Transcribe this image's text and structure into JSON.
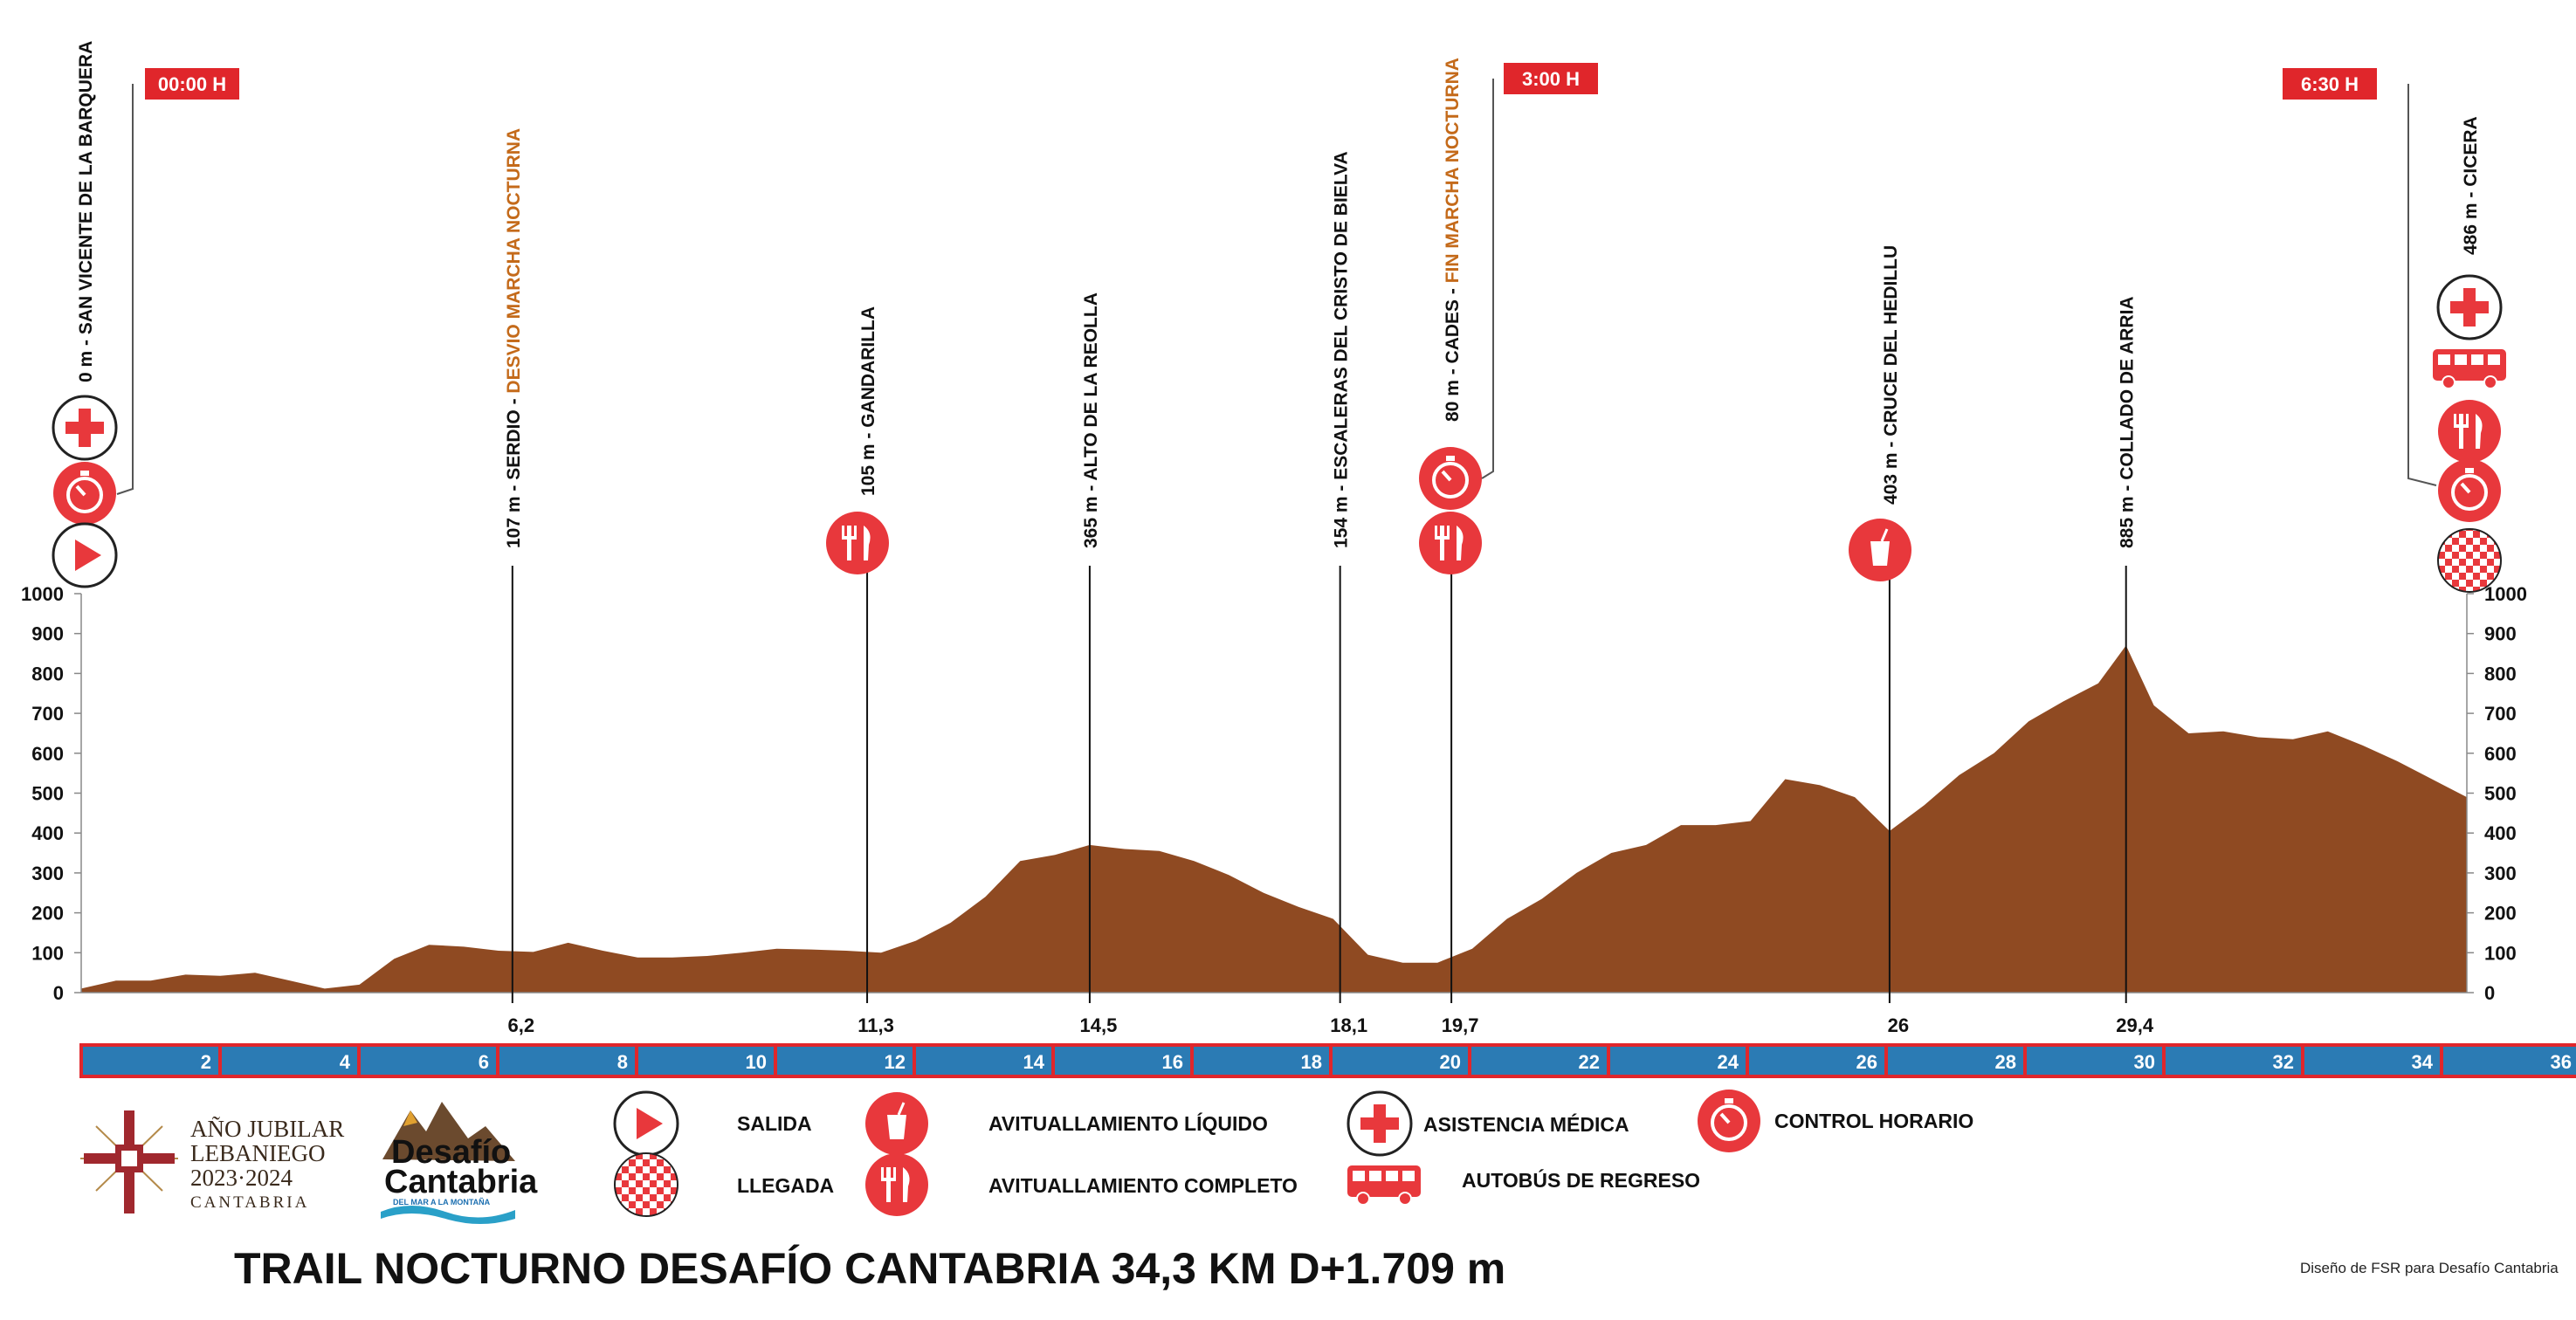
{
  "title": "TRAIL NOCTURNO DESAFÍO CANTABRIA  34,3 KM  D+1.709 m",
  "credit": "Diseño de FSR para Desafío Cantabria",
  "colors": {
    "profile": "#8f4a22",
    "accent": "#e8383c",
    "bar": "#2b7bb4",
    "bar_border": "#e0262b",
    "orange_text": "#c46a1a"
  },
  "jubilee_logo": {
    "line1": "AÑO JUBILAR",
    "line2": "LEBANIEGO",
    "line3": "2023·2024",
    "line4": "CANTABRIA"
  },
  "desafio_logo": {
    "line1": "Desafío",
    "line2": "Cantabria",
    "tagline": "DEL MAR A LA MONTAÑA"
  },
  "legend": [
    {
      "icon": "play-icon",
      "label": "SALIDA"
    },
    {
      "icon": "checkered-flag-icon",
      "label": "LLEGADA"
    },
    {
      "icon": "cup-icon",
      "label": "AVITUALLAMIENTO LÍQUIDO"
    },
    {
      "icon": "fork-knife-icon",
      "label": "AVITUALLAMIENTO COMPLETO"
    },
    {
      "icon": "medical-cross-icon",
      "label": "ASISTENCIA MÉDICA"
    },
    {
      "icon": "bus-icon",
      "label": "AUTOBÚS DE REGRESO"
    },
    {
      "icon": "stopwatch-icon",
      "label": "CONTROL HORARIO"
    }
  ],
  "time_controls": [
    {
      "km": 0,
      "label": "00:00 H"
    },
    {
      "km": 19.7,
      "label": "3:00 H"
    },
    {
      "km": 34.3,
      "label": "6:30 H"
    }
  ],
  "chart_data": {
    "type": "area",
    "xlim": [
      0,
      34.3
    ],
    "ylim": [
      0,
      1000
    ],
    "y_ticks": [
      "0",
      "100",
      "200",
      "300",
      "400",
      "500",
      "600",
      "700",
      "800",
      "900",
      "1000"
    ],
    "km_bar_ticks": [
      "2",
      "4",
      "6",
      "8",
      "10",
      "12",
      "14",
      "16",
      "18",
      "20",
      "22",
      "24",
      "26",
      "28",
      "30",
      "32",
      "34",
      "36"
    ],
    "profile": {
      "x": [
        0,
        0.5,
        1,
        1.5,
        2,
        2.5,
        3,
        3.5,
        4,
        4.5,
        5,
        5.5,
        6,
        6.5,
        7,
        7.5,
        8,
        8.5,
        9,
        9.5,
        10,
        10.5,
        11,
        11.5,
        12,
        12.5,
        13,
        13.5,
        14,
        14.5,
        15,
        15.5,
        16,
        16.5,
        17,
        17.5,
        18,
        18.5,
        19,
        19.5,
        20,
        20.5,
        21,
        21.5,
        22,
        22.5,
        23,
        23.5,
        24,
        24.5,
        25,
        25.5,
        26,
        26.5,
        27,
        27.5,
        28,
        28.5,
        29,
        29.4,
        29.8,
        30.3,
        30.8,
        31.3,
        31.8,
        32.3,
        32.8,
        33.3,
        34.3
      ],
      "y": [
        10,
        30,
        30,
        45,
        42,
        50,
        30,
        10,
        20,
        85,
        120,
        115,
        105,
        102,
        125,
        105,
        88,
        88,
        92,
        100,
        110,
        108,
        105,
        100,
        130,
        175,
        240,
        330,
        345,
        370,
        360,
        355,
        330,
        295,
        250,
        215,
        185,
        95,
        75,
        75,
        110,
        185,
        235,
        300,
        350,
        370,
        420,
        420,
        430,
        535,
        520,
        490,
        405,
        470,
        545,
        600,
        680,
        730,
        775,
        870,
        720,
        650,
        655,
        640,
        635,
        655,
        620,
        580,
        490
      ]
    },
    "waypoints": [
      {
        "km": 0,
        "alt": "0 m",
        "sep": " - ",
        "name": "SAN VICENTE DE LA BARQUERA",
        "orange": false,
        "km_label": "",
        "icons": [
          "medical-cross-icon",
          "stopwatch-icon",
          "play-icon"
        ]
      },
      {
        "km": 6.2,
        "alt": "107 m",
        "sep": " - ",
        "name": "SERDIO",
        "suffix": " - DESVIO MARCHA NOCTURNA",
        "orange": false,
        "km_label": "6,2",
        "icons": []
      },
      {
        "km": 11.3,
        "alt": "105 m",
        "sep": " - ",
        "name": "GANDARILLA",
        "orange": false,
        "km_label": "11,3",
        "icons": [
          "fork-knife-icon"
        ]
      },
      {
        "km": 14.5,
        "alt": "365 m",
        "sep": " -  ",
        "name": "ALTO DE LA REOLLA",
        "orange": false,
        "km_label": "14,5",
        "icons": []
      },
      {
        "km": 18.1,
        "alt": "154 m",
        "sep": " - ",
        "name": "ESCALERAS DEL CRISTO DE BIELVA",
        "orange": false,
        "km_label": "18,1",
        "icons": []
      },
      {
        "km": 19.7,
        "alt": "80 m",
        "sep": " - ",
        "name": "CADES",
        "suffix": " - FIN MARCHA NOCTURNA",
        "orange": false,
        "km_label": "19,7",
        "icons": [
          "stopwatch-icon",
          "fork-knife-icon"
        ]
      },
      {
        "km": 26,
        "alt": "403 m",
        "sep": " - ",
        "name": "CRUCE DEL HEDILLU",
        "orange": false,
        "km_label": "26",
        "icons": [
          "cup-icon"
        ]
      },
      {
        "km": 29.4,
        "alt": "885 m",
        "sep": " - ",
        "name": "COLLADO DE ARRIA",
        "orange": false,
        "km_label": "29,4",
        "icons": []
      },
      {
        "km": 34.3,
        "alt": "486 m",
        "sep": " - ",
        "name": "CICERA",
        "orange": false,
        "km_label": "",
        "icons": [
          "medical-cross-icon",
          "bus-icon",
          "fork-knife-icon",
          "stopwatch-icon",
          "checkered-flag-icon"
        ]
      }
    ]
  }
}
